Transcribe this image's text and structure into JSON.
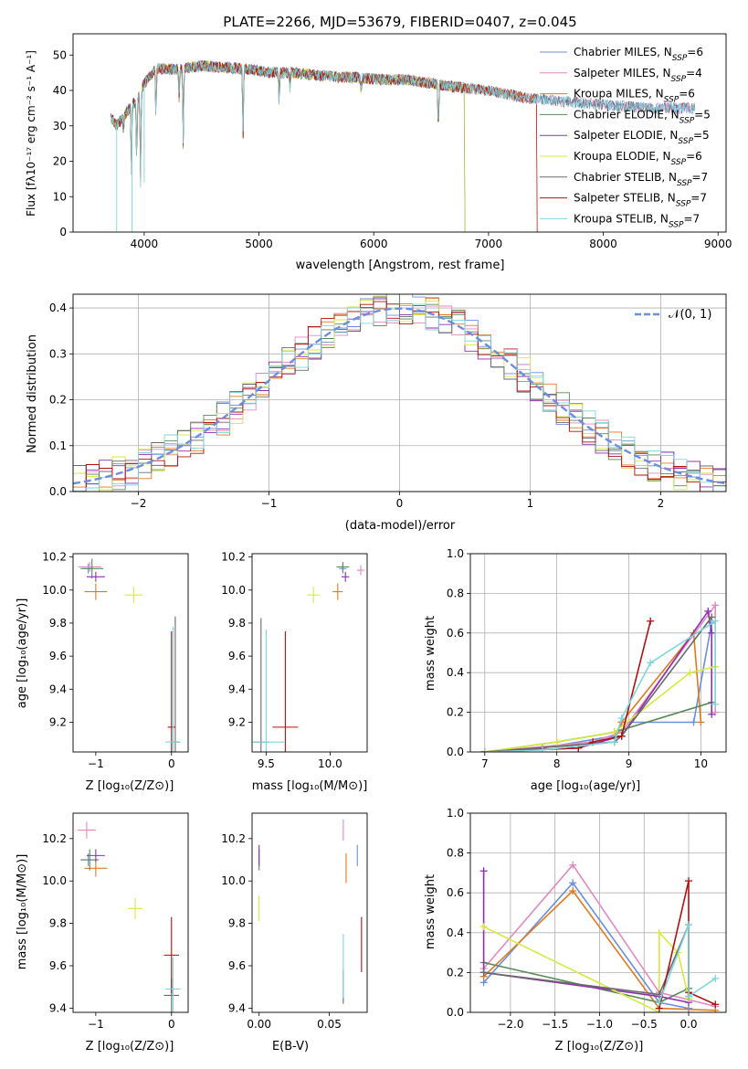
{
  "colors": [
    "#6b8ee0",
    "#e08ac0",
    "#e07a1e",
    "#5a8a5a",
    "#8e2fb0",
    "#d6ea3e",
    "#6a6a6a",
    "#b01010",
    "#7cd6dc"
  ],
  "chart_data": [
    {
      "id": "spectrum",
      "type": "line",
      "title": "PLATE=2266, MJD=53679, FIBERID=0407, z=0.045",
      "xlabel": "wavelength [Angstrom, rest frame]",
      "ylabel": "Flux [fλ10⁻¹⁷ erg cm⁻² s⁻¹ A⁻¹]",
      "xlim": [
        3380,
        9070
      ],
      "ylim": [
        0,
        56
      ],
      "xticks": [
        4000,
        5000,
        6000,
        7000,
        8000,
        9000
      ],
      "yticks": [
        0,
        10,
        20,
        30,
        40,
        50
      ],
      "grid": false,
      "legend_position": "top-right",
      "series": [
        {
          "name": "Chabrier MILES, N_SSP=6",
          "end_x": 8800
        },
        {
          "name": "Salpeter MILES, N_SSP=4",
          "end_x": 8800
        },
        {
          "name": "Kroupa MILES, N_SSP=6",
          "end_x": 7420
        },
        {
          "name": "Chabrier ELODIE, N_SSP=5",
          "end_x": 6790
        },
        {
          "name": "Salpeter ELODIE, N_SSP=5",
          "end_x": 6790
        },
        {
          "name": "Kroupa ELODIE, N_SSP=6",
          "end_x": 6790
        },
        {
          "name": "Chabrier STELIB, N_SSP=7",
          "end_x": 8800
        },
        {
          "name": "Salpeter STELIB, N_SSP=7",
          "end_x": 7420
        },
        {
          "name": "Kroupa STELIB, N_SSP=7",
          "end_x": 8800
        }
      ],
      "continuum": [
        [
          3700,
          33
        ],
        [
          3760,
          30
        ],
        [
          3850,
          34
        ],
        [
          3950,
          38
        ],
        [
          4000,
          42
        ],
        [
          4100,
          46
        ],
        [
          4300,
          46
        ],
        [
          4500,
          47
        ],
        [
          4700,
          46.5
        ],
        [
          4900,
          46
        ],
        [
          5100,
          45
        ],
        [
          5300,
          45
        ],
        [
          5600,
          44
        ],
        [
          5900,
          43.5
        ],
        [
          6100,
          43
        ],
        [
          6300,
          43
        ],
        [
          6500,
          42
        ],
        [
          6700,
          41
        ],
        [
          7000,
          40
        ],
        [
          7300,
          38
        ],
        [
          7600,
          37
        ],
        [
          8000,
          36
        ],
        [
          8400,
          35
        ],
        [
          8800,
          35
        ]
      ],
      "absorption_lines": [
        [
          3820,
          29
        ],
        [
          3889,
          16
        ],
        [
          3934,
          20
        ],
        [
          3968,
          14
        ],
        [
          4102,
          33
        ],
        [
          4304,
          38
        ],
        [
          4340,
          25
        ],
        [
          4861,
          27
        ],
        [
          5175,
          37
        ],
        [
          5270,
          41
        ],
        [
          5890,
          40
        ],
        [
          6563,
          29
        ]
      ]
    },
    {
      "id": "residuals",
      "type": "histogram",
      "xlabel": "(data-model)/error",
      "ylabel": "Normed distribution",
      "xlim": [
        -2.5,
        2.5
      ],
      "ylim": [
        0,
        0.43
      ],
      "xticks": [
        -2,
        -1,
        0,
        1,
        2
      ],
      "yticks": [
        0.0,
        0.1,
        0.2,
        0.3,
        0.4
      ],
      "grid": true,
      "bin_width": 0.1,
      "legend": [
        "𝒩(0, 1)"
      ],
      "legend_position": "top-right",
      "reference_curve": "normal(0, 1)"
    },
    {
      "id": "age-vs-Z",
      "type": "scatter",
      "xlabel": "Z [log₁₀(Z/Z⊙)]",
      "ylabel": "age  [log₁₀(age/yr)]",
      "xlim": [
        -1.3,
        0.22
      ],
      "ylim": [
        9.02,
        10.22
      ],
      "xticks": [
        -1,
        0
      ],
      "yticks": [
        9.2,
        9.4,
        9.6,
        9.8,
        10.0,
        10.2
      ],
      "grid": false,
      "points": [
        {
          "x": -1.1,
          "y": 10.13,
          "xerr": 0.07,
          "yerr": 0.03
        },
        {
          "x": -1.08,
          "y": 10.14,
          "xerr": 0.15,
          "yerr": 0.03
        },
        {
          "x": -1.0,
          "y": 9.99,
          "xerr": 0.15,
          "yerr": 0.05
        },
        {
          "x": -1.05,
          "y": 10.13,
          "xerr": 0.15,
          "yerr": 0.06
        },
        {
          "x": -1.0,
          "y": 10.08,
          "xerr": 0.12,
          "yerr": 0.03
        },
        {
          "x": -0.5,
          "y": 9.97,
          "xerr": 0.12,
          "yerr": 0.05
        },
        {
          "x": 0.05,
          "y": 9.08,
          "xerr": 0.05,
          "yerr": 0.76
        },
        {
          "x": 0.0,
          "y": 9.17,
          "xerr": 0.05,
          "yerr": 0.58
        },
        {
          "x": 0.02,
          "y": 9.08,
          "xerr": 0.1,
          "yerr": 0.7
        }
      ]
    },
    {
      "id": "age-vs-mass",
      "type": "scatter",
      "xlabel": "mass [log₁₀(M/M⊙)]",
      "ylabel": "",
      "xlim": [
        9.39,
        10.29
      ],
      "ylim": [
        9.02,
        10.22
      ],
      "xticks": [
        9.5,
        10.0
      ],
      "yticks": [
        9.2,
        9.4,
        9.6,
        9.8,
        10.0,
        10.2
      ],
      "grid": false,
      "points": [
        {
          "x": 10.1,
          "y": 10.13,
          "xerr": 0.03,
          "yerr": 0.03
        },
        {
          "x": 10.24,
          "y": 10.12,
          "xerr": 0.03,
          "yerr": 0.03
        },
        {
          "x": 10.06,
          "y": 9.99,
          "xerr": 0.04,
          "yerr": 0.05
        },
        {
          "x": 10.1,
          "y": 10.14,
          "xerr": 0.05,
          "yerr": 0.03
        },
        {
          "x": 10.12,
          "y": 10.08,
          "xerr": 0.03,
          "yerr": 0.03
        },
        {
          "x": 9.87,
          "y": 9.97,
          "xerr": 0.05,
          "yerr": 0.05
        },
        {
          "x": 9.46,
          "y": 9.08,
          "xerr": 0.06,
          "yerr": 0.75
        },
        {
          "x": 9.65,
          "y": 9.17,
          "xerr": 0.1,
          "yerr": 0.58
        },
        {
          "x": 9.5,
          "y": 9.08,
          "xerr": 0.14,
          "yerr": 0.68
        }
      ]
    },
    {
      "id": "sfh-age",
      "type": "line",
      "xlabel": "age  [log₁₀(age/yr)]",
      "ylabel": "mass weight",
      "xlim": [
        6.8,
        10.35
      ],
      "ylim": [
        0,
        1.0
      ],
      "xticks": [
        7,
        8,
        9,
        10
      ],
      "yticks": [
        0.0,
        0.2,
        0.4,
        0.6,
        0.8,
        1.0
      ],
      "grid": true,
      "series": [
        {
          "x": [
            7.0,
            7.8,
            8.8,
            8.9,
            9.9,
            10.15,
            10.15
          ],
          "y": [
            0.0,
            0.02,
            0.08,
            0.15,
            0.15,
            0.65,
            0.6
          ]
        },
        {
          "x": [
            7.0,
            8.5,
            8.9,
            10.2,
            10.2
          ],
          "y": [
            0.0,
            0.05,
            0.1,
            0.74,
            0.2
          ]
        },
        {
          "x": [
            7.0,
            8.8,
            8.9,
            9.9,
            10.0
          ],
          "y": [
            0.0,
            0.05,
            0.15,
            0.6,
            0.15
          ]
        },
        {
          "x": [
            7.0,
            8.0,
            8.8,
            10.15
          ],
          "y": [
            0.0,
            0.05,
            0.1,
            0.25
          ]
        },
        {
          "x": [
            7.0,
            8.3,
            8.9,
            10.1,
            10.15,
            10.15
          ],
          "y": [
            0.0,
            0.02,
            0.08,
            0.71,
            0.6,
            0.19
          ]
        },
        {
          "x": [
            7.0,
            8.0,
            8.8,
            9.85,
            10.2
          ],
          "y": [
            0.0,
            0.05,
            0.1,
            0.4,
            0.43
          ]
        },
        {
          "x": [
            7.0,
            8.8,
            8.9,
            10.15
          ],
          "y": [
            0.0,
            0.05,
            0.08,
            0.68
          ]
        },
        {
          "x": [
            7.0,
            8.3,
            8.5,
            8.9,
            9.3
          ],
          "y": [
            0.0,
            0.02,
            0.05,
            0.08,
            0.66
          ]
        },
        {
          "x": [
            7.0,
            7.8,
            8.8,
            8.9,
            9.3,
            10.2,
            10.2
          ],
          "y": [
            0.0,
            0.01,
            0.05,
            0.17,
            0.45,
            0.66,
            0.24
          ]
        }
      ]
    },
    {
      "id": "mass-vs-Z",
      "type": "scatter",
      "xlabel": "Z [log₁₀(Z/Z⊙)]",
      "ylabel": "mass [log₁₀(M/M⊙)]",
      "xlim": [
        -1.3,
        0.22
      ],
      "ylim": [
        9.38,
        10.32
      ],
      "xticks": [
        -1,
        0
      ],
      "yticks": [
        9.4,
        9.6,
        9.8,
        10.0,
        10.2
      ],
      "grid": false,
      "points": [
        {
          "x": -1.1,
          "y": 10.1,
          "xerr": 0.1,
          "yerr": 0.03
        },
        {
          "x": -1.12,
          "y": 10.24,
          "xerr": 0.12,
          "yerr": 0.04
        },
        {
          "x": -1.0,
          "y": 10.06,
          "xerr": 0.15,
          "yerr": 0.04
        },
        {
          "x": -1.08,
          "y": 10.1,
          "xerr": 0.12,
          "yerr": 0.05
        },
        {
          "x": -1.0,
          "y": 10.12,
          "xerr": 0.12,
          "yerr": 0.03
        },
        {
          "x": -0.48,
          "y": 9.87,
          "xerr": 0.1,
          "yerr": 0.05
        },
        {
          "x": 0.0,
          "y": 9.46,
          "xerr": 0.1,
          "yerr": 0.08
        },
        {
          "x": 0.0,
          "y": 9.65,
          "xerr": 0.1,
          "yerr": 0.18
        },
        {
          "x": 0.02,
          "y": 9.49,
          "xerr": 0.1,
          "yerr": 0.15
        }
      ]
    },
    {
      "id": "mass-vs-EBV",
      "type": "scatter",
      "xlabel": "E(B-V)",
      "ylabel": "",
      "xlim": [
        -0.005,
        0.077
      ],
      "ylim": [
        9.38,
        10.32
      ],
      "xticks": [
        0.0,
        0.05
      ],
      "xtick_labels": [
        "0.00",
        "0.05"
      ],
      "yticks": [
        9.4,
        9.6,
        9.8,
        10.0,
        10.2
      ],
      "grid": false,
      "points": [
        {
          "x": 0.07,
          "y": 10.12,
          "xerr": 0.0,
          "yerr": 0.05
        },
        {
          "x": 0.06,
          "y": 10.24,
          "xerr": 0.0,
          "yerr": 0.05
        },
        {
          "x": 0.062,
          "y": 10.06,
          "xerr": 0.0,
          "yerr": 0.07
        },
        {
          "x": 0.0,
          "y": 10.1,
          "xerr": 0.0,
          "yerr": 0.05
        },
        {
          "x": 0.0,
          "y": 10.12,
          "xerr": 0.0,
          "yerr": 0.05
        },
        {
          "x": 0.0,
          "y": 9.87,
          "xerr": 0.0,
          "yerr": 0.06
        },
        {
          "x": 0.06,
          "y": 9.5,
          "xerr": 0.0,
          "yerr": 0.08
        },
        {
          "x": 0.073,
          "y": 9.7,
          "xerr": 0.0,
          "yerr": 0.13
        },
        {
          "x": 0.06,
          "y": 9.6,
          "xerr": 0.0,
          "yerr": 0.15
        }
      ]
    },
    {
      "id": "sfh-Z",
      "type": "line",
      "xlabel": "Z [log₁₀(Z/Z⊙)]",
      "ylabel": "mass weight",
      "xlim": [
        -2.45,
        0.42
      ],
      "ylim": [
        0,
        1.0
      ],
      "xticks": [
        -2.0,
        -1.5,
        -1.0,
        -0.5,
        0.0
      ],
      "yticks": [
        0.0,
        0.2,
        0.4,
        0.6,
        0.8,
        1.0
      ],
      "grid": true,
      "series": [
        {
          "x": [
            -2.3,
            -1.3,
            -0.33,
            0.0
          ],
          "y": [
            0.15,
            0.65,
            0.05,
            0.02
          ]
        },
        {
          "x": [
            -2.3,
            -1.3,
            -0.33,
            0.3
          ],
          "y": [
            0.22,
            0.74,
            0.1,
            0.03
          ]
        },
        {
          "x": [
            -2.3,
            -1.3,
            -0.33,
            0.3
          ],
          "y": [
            0.18,
            0.61,
            0.02,
            0.01
          ]
        },
        {
          "x": [
            -2.3,
            -0.33,
            0.0
          ],
          "y": [
            0.25,
            0.05,
            0.12
          ]
        },
        {
          "x": [
            -2.3,
            -2.3,
            -0.33,
            0.0
          ],
          "y": [
            0.71,
            0.2,
            0.08,
            0.05
          ]
        },
        {
          "x": [
            -2.3,
            -0.33,
            -0.33,
            -0.12,
            0.0
          ],
          "y": [
            0.43,
            0.0,
            0.4,
            0.3,
            0.07
          ]
        },
        {
          "x": [
            -2.3,
            -0.33,
            0.0,
            0.0
          ],
          "y": [
            0.2,
            0.09,
            0.44,
            0.08
          ]
        },
        {
          "x": [
            -0.33,
            0.0,
            0.0,
            0.3
          ],
          "y": [
            0.02,
            0.66,
            0.1,
            0.04
          ]
        },
        {
          "x": [
            -0.33,
            0.0,
            0.0,
            0.3
          ],
          "y": [
            0.05,
            0.44,
            0.08,
            0.17
          ]
        }
      ]
    }
  ]
}
